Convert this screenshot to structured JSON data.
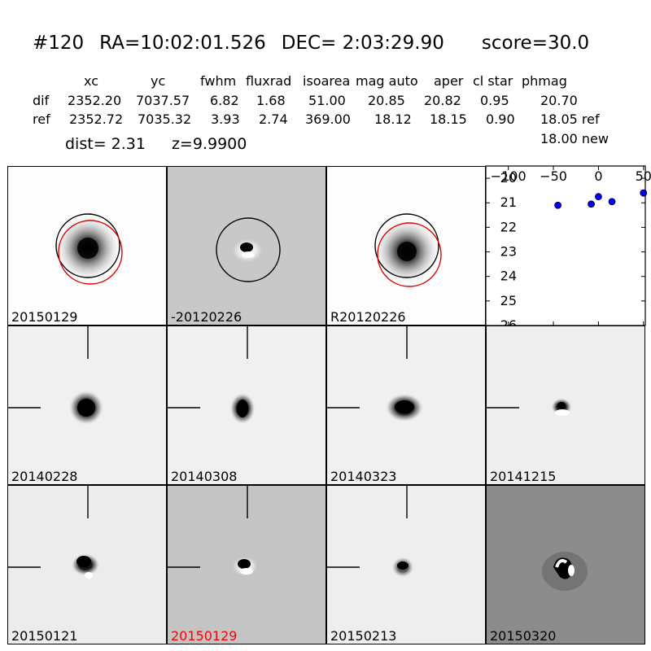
{
  "header": {
    "id": "#120",
    "ra": "RA=10:02:01.526",
    "dec": "DEC= 2:03:29.90",
    "score": "score=30.0"
  },
  "table": {
    "columns": [
      "xc",
      "yc",
      "fwhm",
      "fluxrad",
      "isoarea",
      "mag auto",
      "aper",
      "cl star",
      "phmag"
    ],
    "rows": [
      {
        "label": "dif",
        "values": [
          "2352.20",
          "7037.57",
          "6.82",
          "1.68",
          "51.00",
          "20.85",
          "20.82",
          "0.95",
          "20.70"
        ]
      },
      {
        "label": "ref",
        "values": [
          "2352.72",
          "7035.32",
          "3.93",
          "2.74",
          "369.00",
          "18.12",
          "18.15",
          "0.90",
          "18.05 ref"
        ]
      }
    ],
    "extra": "18.00 new"
  },
  "dist": "dist=  2.31",
  "z": "z=9.9900",
  "panels": [
    {
      "label": "20150129"
    },
    {
      "label": "-20120226"
    },
    {
      "label": "R20120226"
    },
    {
      "label": "20140228"
    },
    {
      "label": "20140308"
    },
    {
      "label": "20140323"
    },
    {
      "label": "20141215"
    },
    {
      "label": "20150121"
    },
    {
      "label": "20150129",
      "color": "#ff0000"
    },
    {
      "label": "20150213"
    },
    {
      "label": "20150320"
    }
  ],
  "chart_data": {
    "type": "scatter",
    "title": "",
    "xlabel": "",
    "ylabel": "",
    "xlim": [
      -125,
      52
    ],
    "ylim": [
      26,
      19.5
    ],
    "xticks": [
      "−100",
      "−50",
      "0",
      "50"
    ],
    "yticks": [
      "20",
      "21",
      "22",
      "23",
      "24",
      "25",
      "26"
    ],
    "x": [
      -45,
      -8,
      0,
      15,
      50
    ],
    "y": [
      21.1,
      21.05,
      20.75,
      20.95,
      20.6
    ],
    "color": "#0000ff"
  }
}
